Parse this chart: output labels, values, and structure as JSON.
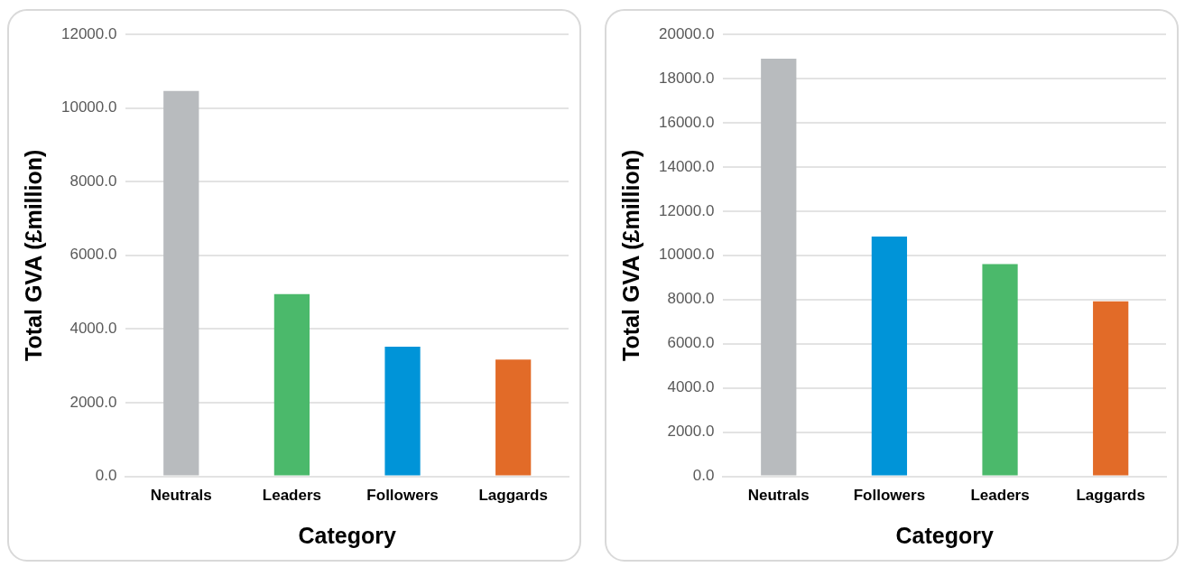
{
  "chart_data": [
    {
      "type": "bar",
      "xlabel": "Category",
      "ylabel": "Total GVA (£million)",
      "categories": [
        "Neutrals",
        "Leaders",
        "Followers",
        "Laggards"
      ],
      "values": [
        10460,
        4950,
        3520,
        3170
      ],
      "colors": [
        "#b8bbbe",
        "#4bb96b",
        "#0094d8",
        "#e26b28"
      ],
      "ylim": [
        0,
        12000
      ],
      "yticks": [
        {
          "value": 0,
          "label": "0.0"
        },
        {
          "value": 2000,
          "label": "2000.0"
        },
        {
          "value": 4000,
          "label": "4000.0"
        },
        {
          "value": 6000,
          "label": "6000.0"
        },
        {
          "value": 8000,
          "label": "8000.0"
        },
        {
          "value": 10000,
          "label": "10000.0"
        },
        {
          "value": 12000,
          "label": "12000.0"
        }
      ],
      "grid": "y",
      "legend": false
    },
    {
      "type": "bar",
      "xlabel": "Category",
      "ylabel": "Total GVA (£million)",
      "categories": [
        "Neutrals",
        "Followers",
        "Leaders",
        "Laggards"
      ],
      "values": [
        18900,
        10850,
        9600,
        7920
      ],
      "colors": [
        "#b8bbbe",
        "#0094d8",
        "#4bb96b",
        "#e26b28"
      ],
      "ylim": [
        0,
        20000
      ],
      "yticks": [
        {
          "value": 0,
          "label": "0.0"
        },
        {
          "value": 2000,
          "label": "2000.0"
        },
        {
          "value": 4000,
          "label": "4000.0"
        },
        {
          "value": 6000,
          "label": "6000.0"
        },
        {
          "value": 8000,
          "label": "8000.0"
        },
        {
          "value": 10000,
          "label": "10000.0"
        },
        {
          "value": 12000,
          "label": "12000.0"
        },
        {
          "value": 14000,
          "label": "14000.0"
        },
        {
          "value": 16000,
          "label": "16000.0"
        },
        {
          "value": 18000,
          "label": "18000.0"
        },
        {
          "value": 20000,
          "label": "20000.0"
        }
      ],
      "grid": "y",
      "legend": false
    }
  ]
}
